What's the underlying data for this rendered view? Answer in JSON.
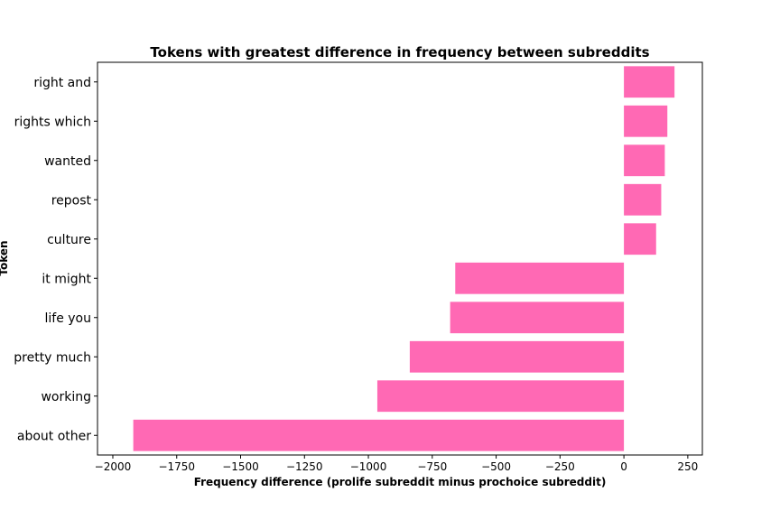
{
  "chart_data": {
    "type": "bar",
    "orientation": "horizontal",
    "title": "Tokens with greatest difference in frequency between subreddits",
    "xlabel": "Frequency difference (prolife subreddit minus prochoice subreddit)",
    "ylabel": "Token",
    "categories": [
      "right and",
      "rights which",
      "wanted",
      "repost",
      "culture",
      "it might",
      "life you",
      "pretty much",
      "working",
      "about other"
    ],
    "values": [
      198,
      170,
      160,
      146,
      126,
      -660,
      -680,
      -838,
      -965,
      -1920
    ],
    "xlim": [
      -2060,
      307
    ],
    "xticks": [
      -2000,
      -1750,
      -1500,
      -1250,
      -1000,
      -750,
      -500,
      -250,
      0,
      250
    ],
    "xtick_labels": [
      "−2000",
      "−1750",
      "−1500",
      "−1250",
      "−1000",
      "−750",
      "−500",
      "−250",
      "0",
      "250"
    ],
    "grid": false,
    "legend": "none",
    "bar_color": "#ff69b4"
  }
}
